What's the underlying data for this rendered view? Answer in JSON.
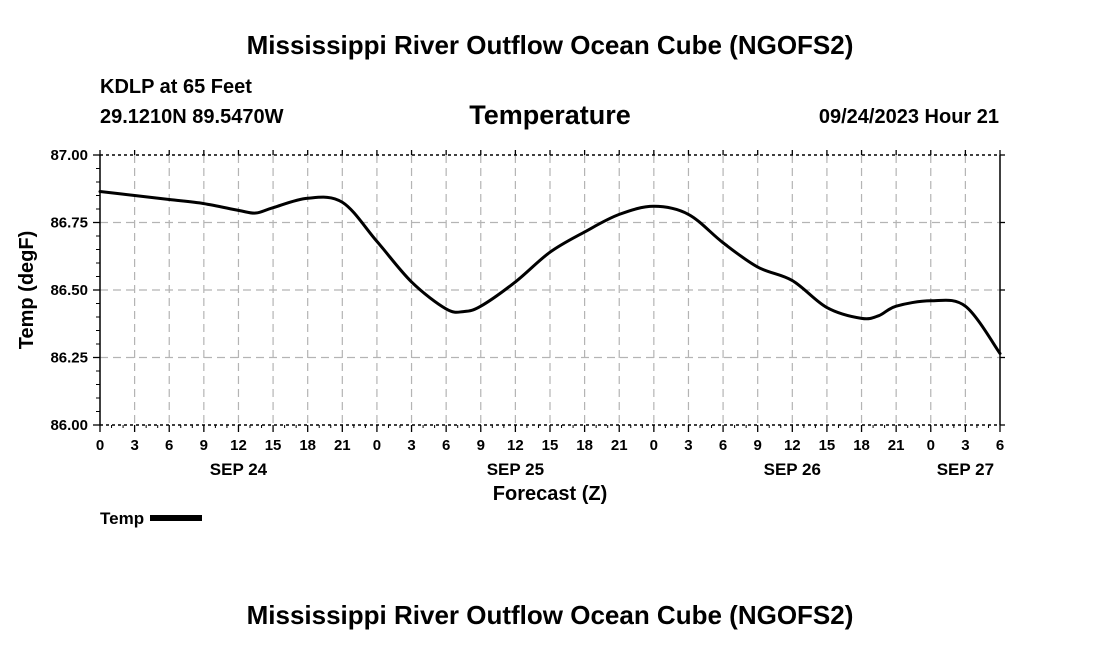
{
  "page": {
    "main_title": "Mississippi River Outflow Ocean Cube (NGOFS2)",
    "station": "KDLP at 65 Feet",
    "coords": "29.1210N  89.5470W",
    "variable_title": "Temperature",
    "date_label": "09/24/2023 Hour 21",
    "footer_title": "Mississippi River Outflow Ocean Cube (NGOFS2)"
  },
  "legend": {
    "label": "Temp",
    "color": "#000000"
  },
  "chart_data": {
    "type": "line",
    "title": "Temperature",
    "xlabel": "Forecast (Z)",
    "ylabel": "Temp (degF)",
    "x_unit": "forecast hours from SEP 24 00Z",
    "xlim": [
      0,
      78
    ],
    "ylim": [
      86.0,
      87.0
    ],
    "y_ticks": [
      86.0,
      86.25,
      86.5,
      86.75,
      87.0
    ],
    "y_tick_labels": [
      "86.00",
      "86.25",
      "86.50",
      "86.75",
      "87.00"
    ],
    "x_ticks": [
      0,
      3,
      6,
      9,
      12,
      15,
      18,
      21,
      24,
      27,
      30,
      33,
      36,
      39,
      42,
      45,
      48,
      51,
      54,
      57,
      60,
      63,
      66,
      69,
      72,
      75,
      78
    ],
    "x_tick_labels": [
      "0",
      "3",
      "6",
      "9",
      "12",
      "15",
      "18",
      "21",
      "0",
      "3",
      "6",
      "9",
      "12",
      "15",
      "18",
      "21",
      "0",
      "3",
      "6",
      "9",
      "12",
      "15",
      "18",
      "21",
      "0",
      "3",
      "6"
    ],
    "date_labels": [
      {
        "x": 12,
        "label": "SEP 24"
      },
      {
        "x": 36,
        "label": "SEP 25"
      },
      {
        "x": 60,
        "label": "SEP 26"
      },
      {
        "x": 75,
        "label": "SEP 27"
      }
    ],
    "grid": true,
    "series": [
      {
        "name": "Temp",
        "color": "#000000",
        "x": [
          0,
          3,
          6,
          9,
          12,
          13.5,
          15,
          18,
          21,
          24,
          27,
          30,
          31.5,
          33,
          36,
          39,
          42,
          45,
          48,
          51,
          54,
          57,
          60,
          63,
          66,
          67.5,
          69,
          72,
          75,
          78
        ],
        "y": [
          86.865,
          86.85,
          86.835,
          86.82,
          86.795,
          86.785,
          86.805,
          86.84,
          86.825,
          86.68,
          86.53,
          86.43,
          86.42,
          86.44,
          86.53,
          86.64,
          86.715,
          86.78,
          86.81,
          86.78,
          86.675,
          86.585,
          86.535,
          86.435,
          86.395,
          86.405,
          86.44,
          86.46,
          86.44,
          86.265
        ]
      }
    ]
  }
}
